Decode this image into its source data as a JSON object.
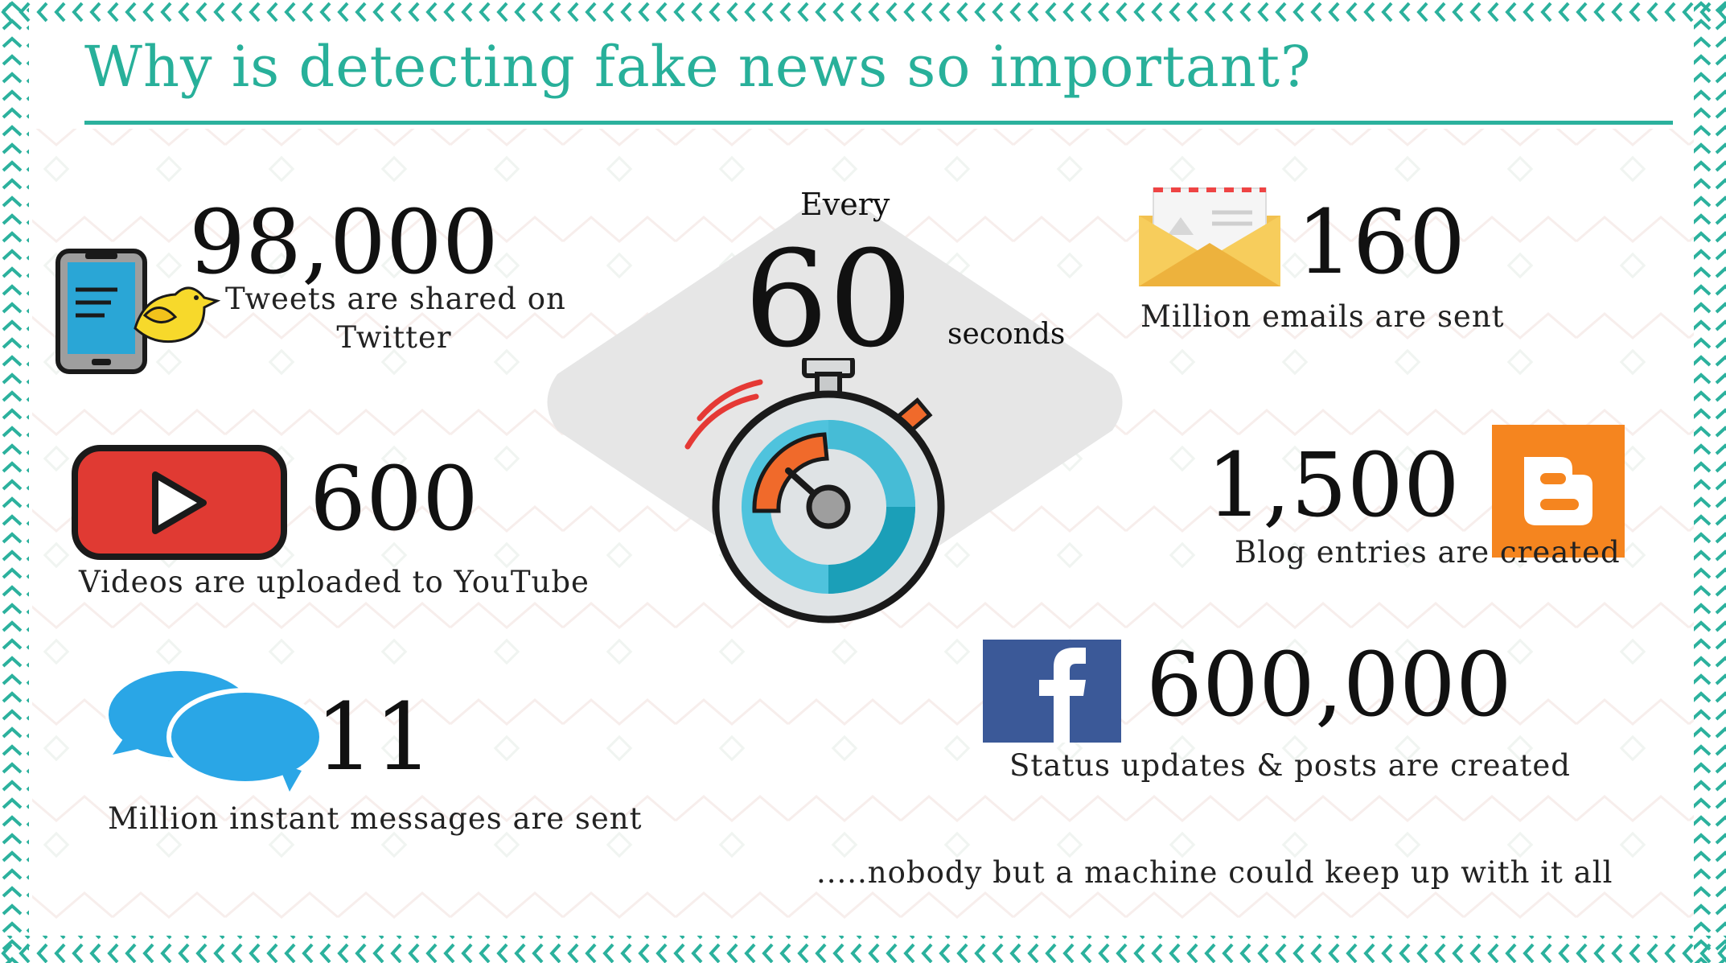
{
  "title": "Why is detecting fake news so important?",
  "center": {
    "every": "Every",
    "number": "60",
    "unit": "seconds"
  },
  "stats": {
    "twitter": {
      "value": "98,000",
      "line1": "Tweets are shared on",
      "line2": "Twitter"
    },
    "email": {
      "value": "160",
      "label": "Million emails are sent"
    },
    "youtube": {
      "value": "600",
      "label": "Videos are uploaded to YouTube"
    },
    "blog": {
      "value": "1,500",
      "label": "Blog entries are created"
    },
    "messages": {
      "value": "11",
      "label": "Million instant messages are sent"
    },
    "facebook": {
      "value": "600,000",
      "label": "Status updates & posts are created"
    }
  },
  "footer": ".....nobody but a machine could keep up with it all",
  "colors": {
    "accent": "#2bb19d",
    "youtube_red": "#e03a33",
    "blogger_orange": "#f5851f",
    "facebook_blue": "#3b5998",
    "chat_blue": "#2aa6e6",
    "bird_yellow": "#f7d92b"
  },
  "icons": [
    "phone-bird-icon",
    "envelope-icon",
    "youtube-icon",
    "blogger-icon",
    "chat-bubbles-icon",
    "facebook-icon",
    "stopwatch-icon"
  ]
}
